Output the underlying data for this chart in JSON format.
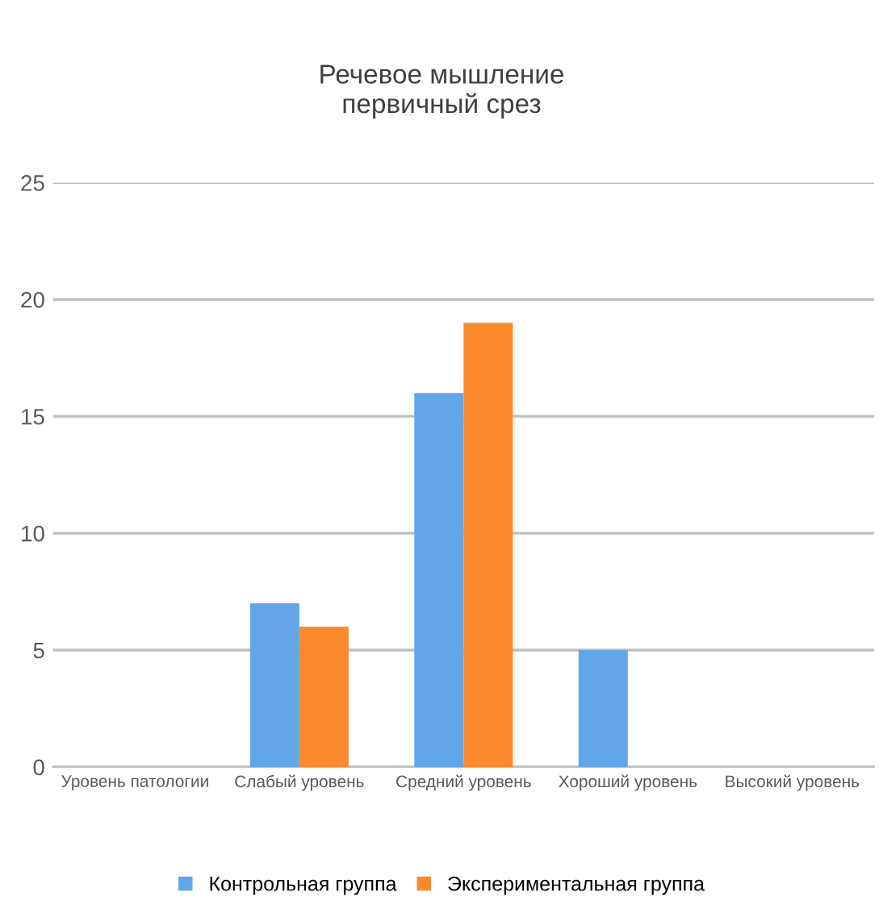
{
  "chart_data": {
    "type": "bar",
    "title": "Речевое мышление\nпервичный срез",
    "categories": [
      "Уровень патологии",
      "Слабый уровень",
      "Средний уровень",
      "Хороший уровень",
      "Высокий уровень"
    ],
    "series": [
      {
        "name": "Контрольная группа",
        "color": "#62a6e8",
        "values": [
          0,
          7,
          16,
          5,
          0
        ]
      },
      {
        "name": "Экспериментальная группа",
        "color": "#fb8a2e",
        "values": [
          0,
          6,
          19,
          0,
          0
        ]
      }
    ],
    "ylim": [
      0,
      25
    ],
    "yticks": [
      0,
      5,
      10,
      15,
      20,
      25
    ],
    "grid": "y",
    "legend": "bottom"
  }
}
